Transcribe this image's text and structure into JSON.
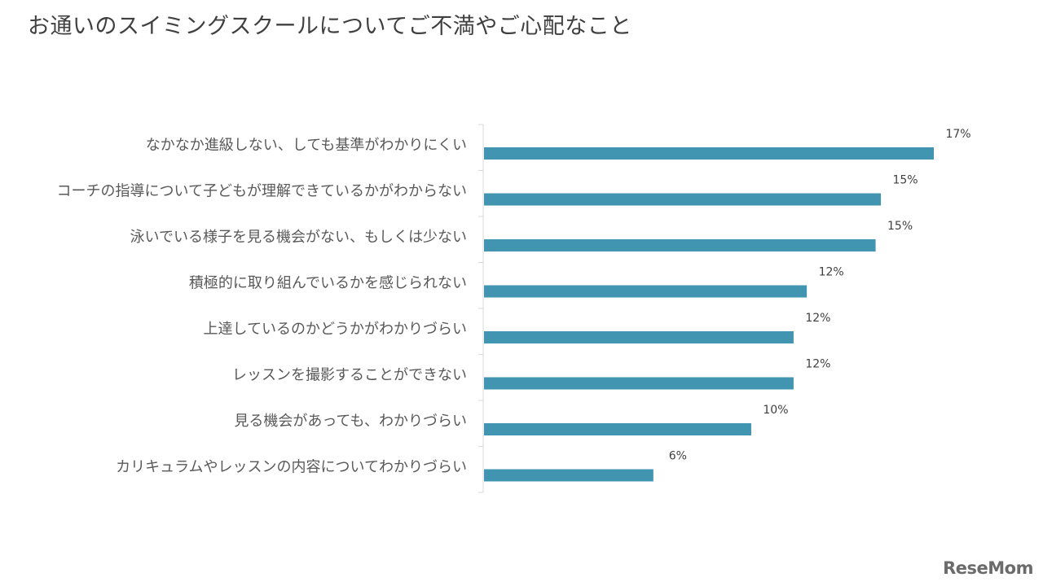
{
  "title": "お通いのスイミングスクールについてご不満やご心配なこと",
  "logo": "ReseMom",
  "colors": {
    "bar": "#4295b0",
    "axis": "#d9d9d9",
    "label": "#595959",
    "value": "#404040"
  },
  "chart_data": {
    "type": "bar",
    "orientation": "horizontal",
    "categories": [
      "なかなか進級しない、しても基準がわかりにくい",
      "コーチの指導について子どもが理解できているかがわからない",
      "泳いでいる様子を見る機会がない、もしくは少ない",
      "積極的に取り組んでいるかを感じられない",
      "上達しているのかどうかがわかりづらい",
      "レッスンを撮影することができない",
      "見る機会があっても、わかりづらい",
      "カリキュラムやレッスンの内容についてわかりづらい"
    ],
    "values": [
      17.0,
      15.0,
      14.8,
      12.2,
      11.7,
      11.7,
      10.1,
      6.4
    ],
    "data_labels": [
      "17%",
      "15%",
      "15%",
      "12%",
      "12%",
      "12%",
      "10%",
      "6%"
    ],
    "xlim": [
      0,
      20
    ],
    "grid": false,
    "legend": "none"
  }
}
